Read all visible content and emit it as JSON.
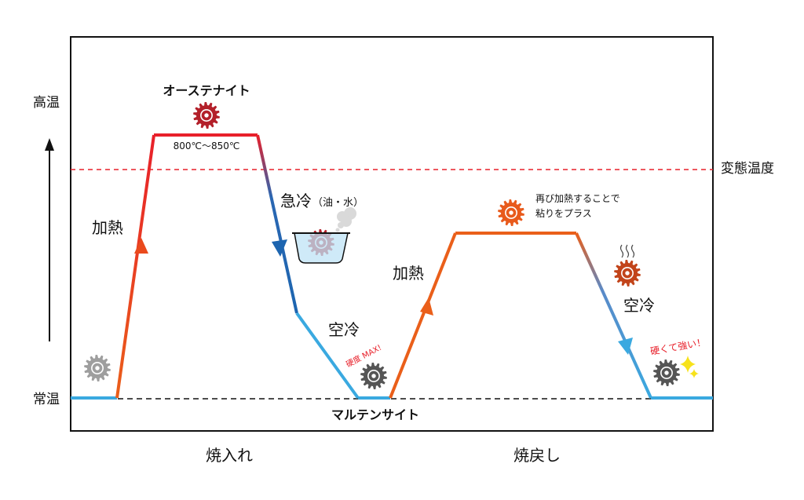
{
  "axis": {
    "high_label": "高温",
    "low_label": "常温",
    "transformation_label": "変態温度"
  },
  "phases": {
    "quench_label": "焼入れ",
    "temper_label": "焼戻し"
  },
  "states": {
    "austenite": "オーステナイト",
    "martensite": "マルテンサイト"
  },
  "annotations": {
    "temp_range": "800℃〜850℃",
    "heat_1": "加熱",
    "rapid_cool": "急冷",
    "rapid_cool_media": "（油・水）",
    "air_cool_1": "空冷",
    "hardness_max": "硬度 MAX!",
    "heat_2": "加熱",
    "reheat_note_line1": "再び加熱することで",
    "reheat_note_line2": "粘りをプラス",
    "air_cool_2": "空冷",
    "hard_and_strong": "硬くて強い！"
  },
  "colors": {
    "heat_red": "#e8202a",
    "heat_orange": "#ea5f1a",
    "cool_blue": "#1d65b0",
    "air_blue": "#3aa9e0",
    "gear_gray": "#9e9e9e",
    "gear_dark": "#555555",
    "gear_red": "#b3202a",
    "gear_orange": "#e85a1c",
    "gear_rust": "#c2441a",
    "dashed_red": "#e8202a",
    "sparkle": "#f7e21b"
  }
}
